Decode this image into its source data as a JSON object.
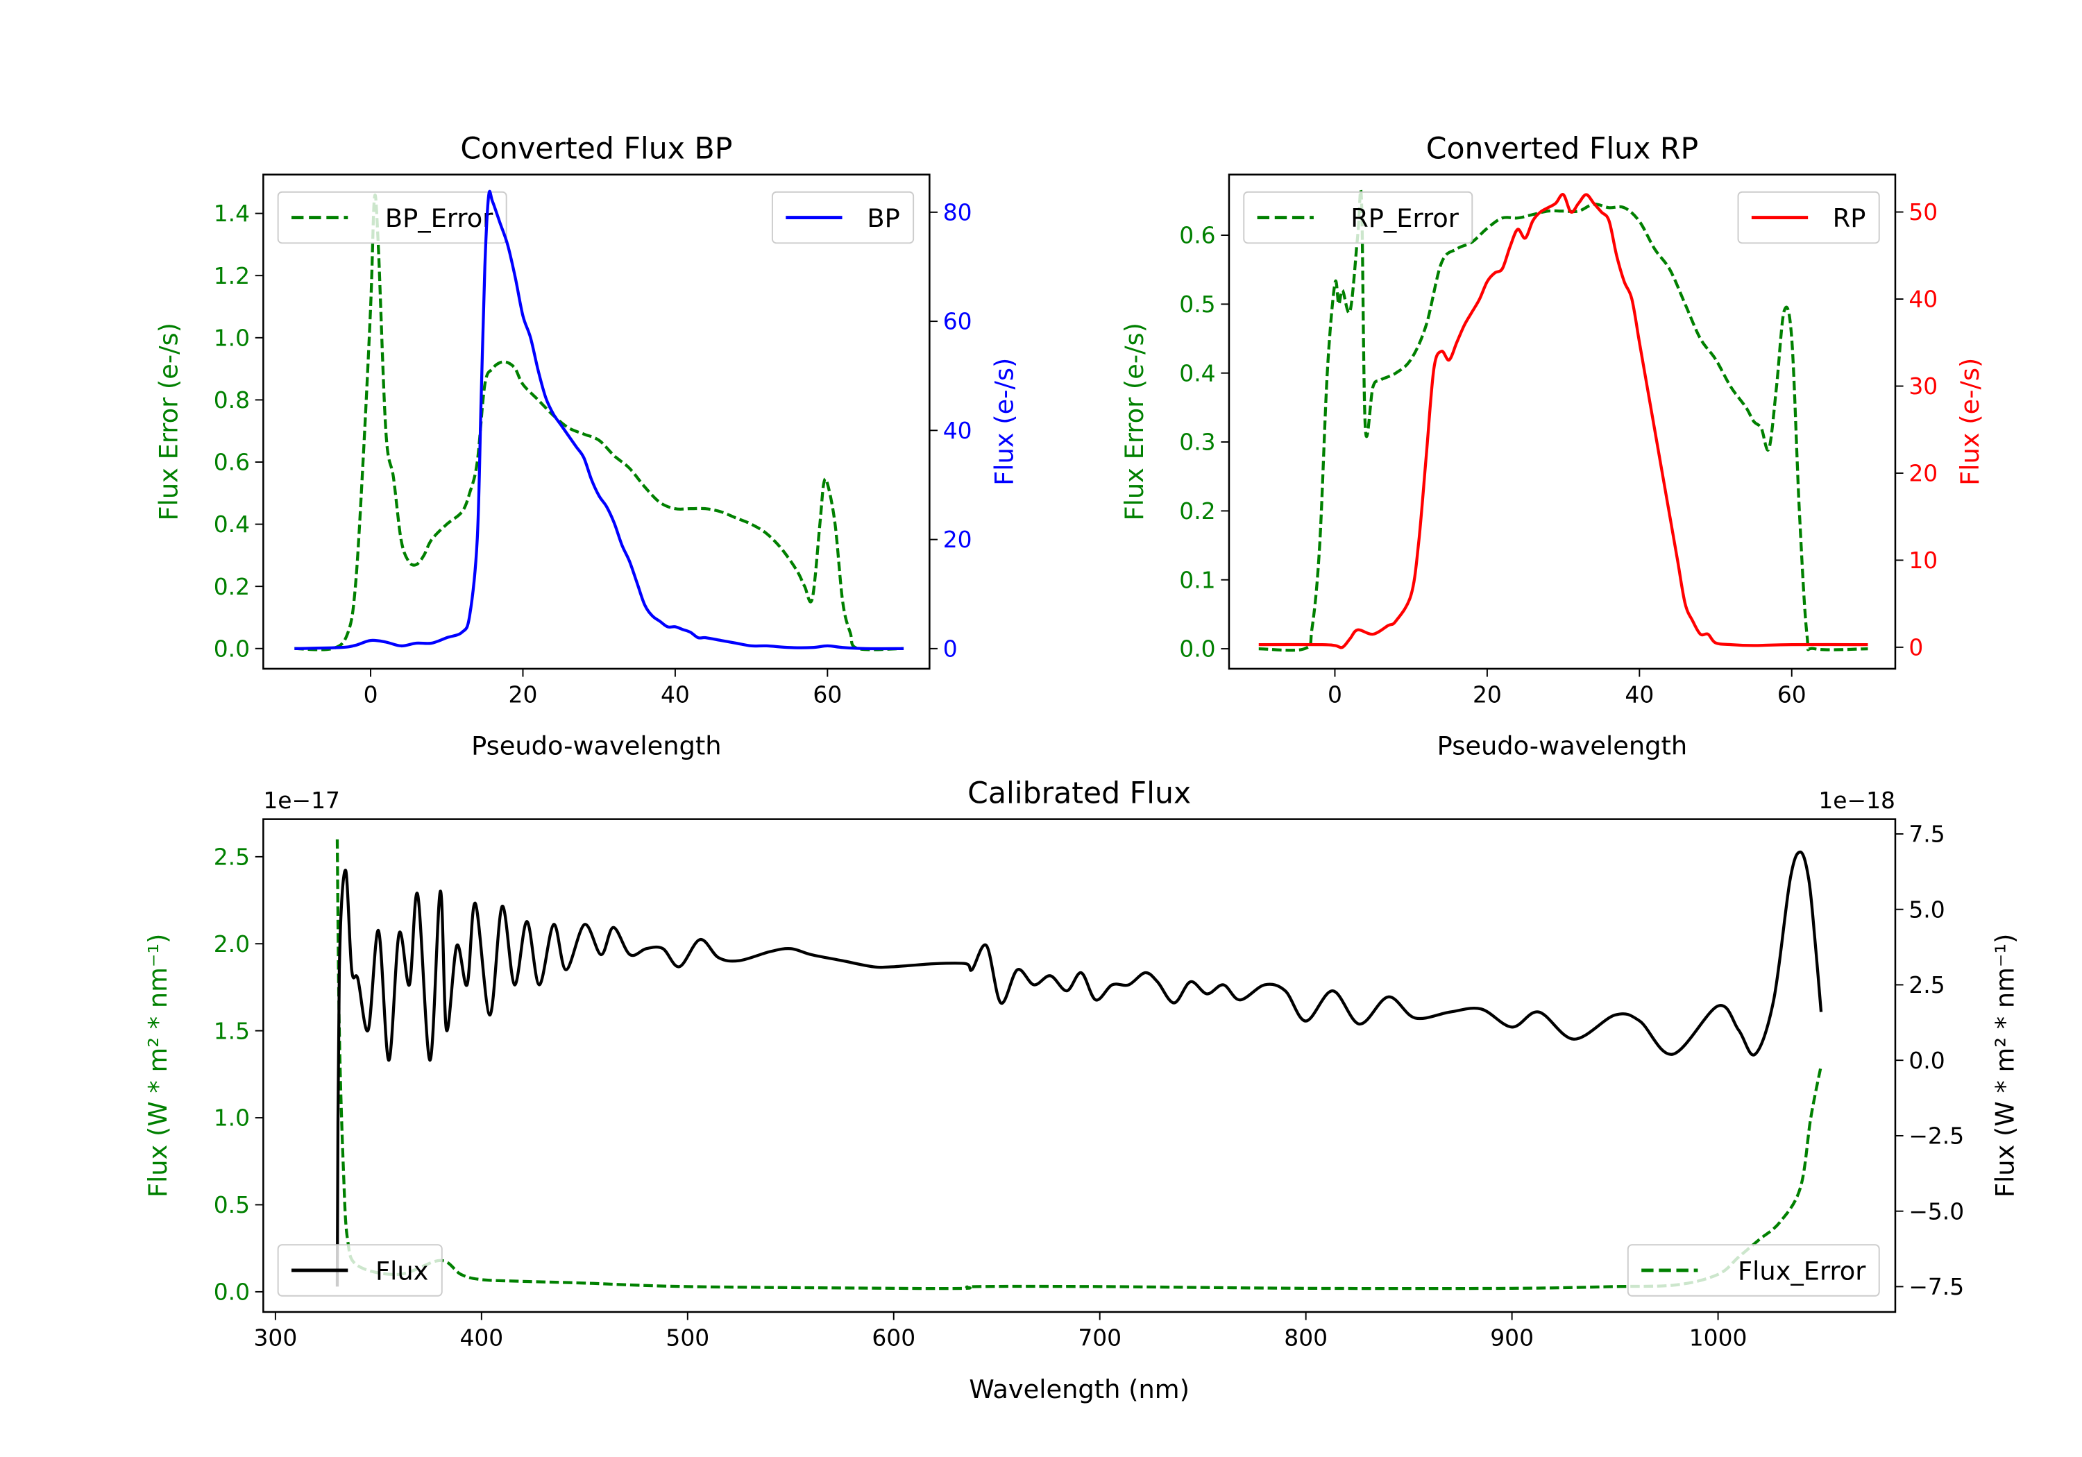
{
  "colors": {
    "green": "#008000",
    "blue": "#0000ff",
    "red": "#ff0000",
    "black": "#000000"
  },
  "chart_data": [
    {
      "type": "line",
      "title": "Converted Flux BP",
      "xlabel": "Pseudo-wavelength",
      "ylabel": "Flux Error (e-/s)",
      "ylabel_right": "Flux (e-/s)",
      "xlim": [
        -14.1,
        73.4
      ],
      "ylim": [
        -0.065,
        1.525
      ],
      "ylim_right": [
        -3.69,
        86.9
      ],
      "xticks": [
        0,
        20,
        40,
        60
      ],
      "xtick_labels": [
        "0",
        "20",
        "40",
        "60"
      ],
      "yticks": [
        0,
        0.2,
        0.4,
        0.6,
        0.8,
        1.0,
        1.2,
        1.4
      ],
      "ytick_labels": [
        "0.0",
        "0.2",
        "0.4",
        "0.6",
        "0.8",
        "1.0",
        "1.2",
        "1.4"
      ],
      "yticks_right": [
        0,
        20,
        40,
        60,
        80
      ],
      "ytick_labels_right": [
        "0",
        "20",
        "40",
        "60",
        "80"
      ],
      "ylabel_color": "#008000",
      "ylabel_right_color": "#0000ff",
      "legend_left": {
        "label": "BP_Error",
        "placement": "upper-left"
      },
      "legend_right": {
        "label": "BP",
        "placement": "upper-right"
      },
      "series": [
        {
          "name": "BP_Error",
          "axis": "left",
          "color": "#008000",
          "style": "dashed",
          "x": [
            -10,
            -5,
            -3,
            -2,
            -1,
            0,
            0.5,
            1,
            2,
            3,
            4,
            5,
            6,
            7,
            8,
            10,
            12,
            13,
            14,
            15,
            16,
            17,
            18,
            19,
            20,
            22,
            24,
            26,
            28,
            30,
            32,
            34,
            36,
            38,
            40,
            42,
            44,
            46,
            48,
            50,
            52,
            54,
            56,
            57,
            58,
            59,
            59.5,
            60,
            61,
            62,
            63,
            64,
            70
          ],
          "y": [
            0,
            0,
            0.05,
            0.2,
            0.6,
            1.1,
            1.45,
            1.3,
            0.7,
            0.55,
            0.35,
            0.28,
            0.27,
            0.3,
            0.35,
            0.4,
            0.44,
            0.5,
            0.6,
            0.85,
            0.9,
            0.92,
            0.92,
            0.9,
            0.85,
            0.8,
            0.75,
            0.71,
            0.69,
            0.67,
            0.62,
            0.58,
            0.52,
            0.47,
            0.45,
            0.45,
            0.45,
            0.44,
            0.42,
            0.4,
            0.37,
            0.32,
            0.25,
            0.2,
            0.16,
            0.4,
            0.53,
            0.53,
            0.4,
            0.15,
            0.05,
            0,
            0
          ]
        },
        {
          "name": "BP",
          "axis": "right",
          "color": "#0000ff",
          "style": "solid",
          "x": [
            -10,
            -4,
            -2,
            0,
            2,
            4,
            6,
            8,
            10,
            12,
            13,
            14,
            14.5,
            15,
            15.5,
            16,
            17,
            18,
            19,
            20,
            21,
            22,
            23,
            24,
            25,
            26,
            27,
            28,
            29,
            30,
            31,
            32,
            33,
            34,
            35,
            36,
            37,
            38,
            39,
            40,
            41,
            42,
            43,
            44,
            46,
            48,
            50,
            52,
            55,
            58,
            60,
            62,
            65,
            70
          ],
          "y": [
            0,
            0.2,
            0.6,
            1.5,
            1.2,
            0.5,
            1.0,
            1.0,
            2,
            3,
            6,
            20,
            45,
            70,
            83,
            82,
            78,
            74,
            68,
            61,
            57,
            51,
            46,
            43,
            41,
            39,
            37,
            35,
            31,
            28,
            26,
            23,
            19,
            16,
            12,
            8,
            6,
            5,
            4,
            4,
            3.5,
            3,
            2,
            2,
            1.5,
            1,
            0.5,
            0.5,
            0.2,
            0.2,
            0.5,
            0.2,
            0,
            0
          ]
        }
      ]
    },
    {
      "type": "line",
      "title": "Converted Flux RP",
      "xlabel": "Pseudo-wavelength",
      "ylabel": "Flux Error (e-/s)",
      "ylabel_right": "Flux (e-/s)",
      "xlim": [
        -13.9,
        73.6
      ],
      "ylim": [
        -0.029,
        0.688
      ],
      "ylim_right": [
        -2.47,
        54.3
      ],
      "xticks": [
        0,
        20,
        40,
        60
      ],
      "xtick_labels": [
        "0",
        "20",
        "40",
        "60"
      ],
      "yticks": [
        0,
        0.1,
        0.2,
        0.3,
        0.4,
        0.5,
        0.6
      ],
      "ytick_labels": [
        "0.0",
        "0.1",
        "0.2",
        "0.3",
        "0.4",
        "0.5",
        "0.6"
      ],
      "yticks_right": [
        0,
        10,
        20,
        30,
        40,
        50
      ],
      "ytick_labels_right": [
        "0",
        "10",
        "20",
        "30",
        "40",
        "50"
      ],
      "ylabel_color": "#008000",
      "ylabel_right_color": "#ff0000",
      "legend_left": {
        "label": "RP_Error",
        "placement": "upper-left"
      },
      "legend_right": {
        "label": "RP",
        "placement": "upper-right"
      },
      "series": [
        {
          "name": "RP_Error",
          "axis": "left",
          "color": "#008000",
          "style": "dashed",
          "x": [
            -10,
            -4,
            -3,
            -2,
            -1,
            0,
            0.5,
            1,
            2,
            3,
            3.5,
            4,
            5,
            6,
            8,
            10,
            12,
            14,
            16,
            18,
            20,
            22,
            24,
            26,
            28,
            30,
            32,
            34,
            36,
            38,
            40,
            42,
            44,
            46,
            48,
            50,
            52,
            54,
            55,
            56,
            57,
            58,
            59,
            60,
            61,
            62,
            63,
            70
          ],
          "y": [
            0,
            0,
            0.03,
            0.15,
            0.4,
            0.53,
            0.5,
            0.52,
            0.49,
            0.6,
            0.65,
            0.32,
            0.38,
            0.39,
            0.4,
            0.42,
            0.47,
            0.56,
            0.58,
            0.59,
            0.61,
            0.625,
            0.625,
            0.63,
            0.635,
            0.635,
            0.635,
            0.645,
            0.64,
            0.64,
            0.62,
            0.58,
            0.55,
            0.5,
            0.45,
            0.42,
            0.38,
            0.35,
            0.33,
            0.32,
            0.29,
            0.38,
            0.49,
            0.45,
            0.2,
            0.02,
            0,
            0
          ]
        },
        {
          "name": "RP",
          "axis": "right",
          "color": "#ff0000",
          "style": "solid",
          "x": [
            -10,
            -2,
            0,
            1,
            2,
            3,
            5,
            7,
            8,
            10,
            11,
            12,
            13,
            14,
            15,
            16,
            17,
            18,
            19,
            20,
            21,
            22,
            23,
            24,
            25,
            26,
            27,
            28,
            29,
            30,
            31,
            32,
            33,
            34,
            35,
            36,
            37,
            38,
            39,
            40,
            41,
            42,
            43,
            44,
            45,
            46,
            47,
            48,
            49,
            50,
            52,
            55,
            60,
            70
          ],
          "y": [
            0.3,
            0.3,
            0.2,
            0,
            1,
            2,
            1.5,
            2.5,
            3,
            6,
            12,
            22,
            32,
            34,
            33,
            35,
            37,
            38.5,
            40,
            42,
            43,
            43.5,
            46,
            48,
            47,
            49,
            50,
            50.5,
            51,
            52,
            50,
            51,
            52,
            51,
            50,
            49,
            45,
            42,
            40,
            35,
            30,
            25,
            20,
            15,
            10,
            5,
            3,
            1.5,
            1.5,
            0.5,
            0.3,
            0.2,
            0.3,
            0.3
          ]
        }
      ]
    },
    {
      "type": "line",
      "title": "Calibrated Flux",
      "xlabel": "Wavelength (nm)",
      "ylabel": "Flux (W * m² * nm⁻¹)",
      "ylabel_right": "Flux (W * m² * nm⁻¹)",
      "offset_left": "1e−17",
      "offset_right": "1e−18",
      "xlim": [
        294.1,
        1086
      ],
      "ylim": [
        -0.116,
        2.716
      ],
      "ylim_right": [
        -8.34,
        7.99
      ],
      "xticks": [
        300,
        400,
        500,
        600,
        700,
        800,
        900,
        1000
      ],
      "xtick_labels": [
        "300",
        "400",
        "500",
        "600",
        "700",
        "800",
        "900",
        "1000"
      ],
      "yticks": [
        0,
        0.5,
        1.0,
        1.5,
        2.0,
        2.5
      ],
      "ytick_labels": [
        "0.0",
        "0.5",
        "1.0",
        "1.5",
        "2.0",
        "2.5"
      ],
      "yticks_right": [
        -7.5,
        -5.0,
        -2.5,
        0,
        2.5,
        5.0,
        7.5
      ],
      "ytick_labels_right": [
        "−7.5",
        "−5.0",
        "−2.5",
        "0.0",
        "2.5",
        "5.0",
        "7.5"
      ],
      "ylabel_color": "#008000",
      "ylabel_right_color": "#000000",
      "legend_left": {
        "label": "Flux_Error",
        "placement": "lower-right"
      },
      "legend_right": {
        "label": "Flux",
        "placement": "lower-left"
      },
      "series": [
        {
          "name": "Flux_Error",
          "axis": "left",
          "color": "#008000",
          "style": "dashed",
          "x": [
            330,
            331,
            333,
            335,
            340,
            360,
            380,
            390,
            400,
            420,
            450,
            500,
            600,
            635,
            640,
            700,
            800,
            900,
            950,
            980,
            1000,
            1010,
            1020,
            1030,
            1040,
            1045,
            1050
          ],
          "y": [
            2.6,
            1.5,
            0.7,
            0.3,
            0.15,
            0.1,
            0.18,
            0.1,
            0.07,
            0.06,
            0.05,
            0.03,
            0.02,
            0.02,
            0.03,
            0.03,
            0.02,
            0.02,
            0.03,
            0.04,
            0.1,
            0.2,
            0.3,
            0.4,
            0.6,
            1.0,
            1.3
          ]
        },
        {
          "name": "Flux",
          "axis": "right",
          "color": "#000000",
          "style": "solid",
          "x": [
            330,
            331,
            334,
            337,
            340,
            345,
            350,
            355,
            360,
            365,
            369,
            375,
            380,
            383,
            388,
            393,
            397,
            404,
            410,
            416,
            422,
            428,
            435,
            441,
            450,
            458,
            464,
            472,
            480,
            488,
            496,
            506,
            515,
            525,
            540,
            550,
            560,
            575,
            590,
            600,
            620,
            635,
            638,
            645,
            652,
            660,
            668,
            676,
            684,
            691,
            698,
            706,
            714,
            722,
            728,
            736,
            744,
            752,
            760,
            768,
            780,
            790,
            800,
            813,
            826,
            840,
            853,
            870,
            885,
            900,
            913,
            930,
            950,
            962,
            978,
            1000,
            1010,
            1018,
            1027,
            1035,
            1040,
            1044,
            1047,
            1050
          ],
          "y": [
            -7.5,
            3,
            6.3,
            3,
            2.7,
            1,
            4.3,
            0,
            4.2,
            2.5,
            5.5,
            0,
            5.6,
            1,
            3.8,
            2.5,
            5.2,
            1.5,
            5.1,
            2.5,
            4.6,
            2.5,
            4.5,
            3,
            4.5,
            3.5,
            4.4,
            3.5,
            3.7,
            3.7,
            3.1,
            4.0,
            3.4,
            3.3,
            3.6,
            3.7,
            3.5,
            3.3,
            3.1,
            3.1,
            3.2,
            3.2,
            3.0,
            3.8,
            1.9,
            3.0,
            2.5,
            2.8,
            2.3,
            2.9,
            2.0,
            2.5,
            2.5,
            2.9,
            2.6,
            1.9,
            2.6,
            2.2,
            2.5,
            2.0,
            2.5,
            2.3,
            1.3,
            2.3,
            1.2,
            2.1,
            1.4,
            1.6,
            1.7,
            1.1,
            1.6,
            0.7,
            1.5,
            1.3,
            0.2,
            1.8,
            1.0,
            0.2,
            2.0,
            6,
            6.9,
            6.0,
            4,
            1.6
          ]
        }
      ]
    }
  ]
}
